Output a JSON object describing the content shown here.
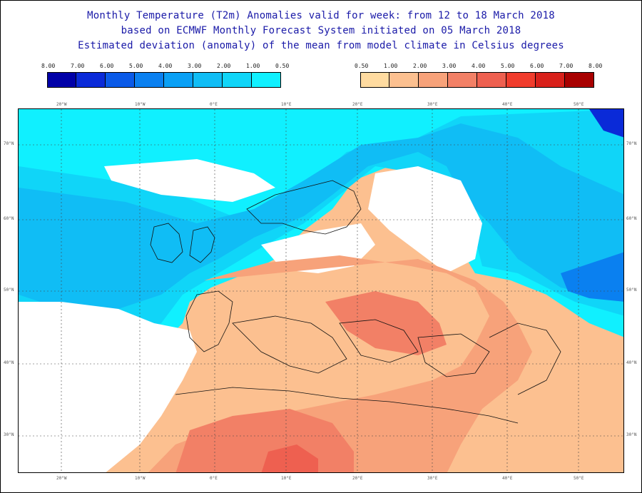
{
  "header": {
    "line1": "Monthly Temperature (T2m) Anomalies valid for week: from 12 to 18 March 2018",
    "line2": "based on ECMWF Monthly Forecast System initiated on 05 March 2018",
    "line3": "Estimated deviation (anomaly) of the mean from model climate in Celsius degrees"
  },
  "legend_cold": {
    "labels": [
      "8.00",
      "7.00",
      "6.00",
      "5.00",
      "4.00",
      "3.00",
      "2.00",
      "1.00",
      "0.50"
    ],
    "colors": [
      "#0000a8",
      "#0a2ad8",
      "#0a5ae8",
      "#0a80f0",
      "#0aa0f5",
      "#10bdf5",
      "#10d5f8",
      "#10f0ff"
    ]
  },
  "legend_warm": {
    "labels": [
      "0.50",
      "1.00",
      "2.00",
      "3.00",
      "4.00",
      "5.00",
      "6.00",
      "7.00",
      "8.00"
    ],
    "colors": [
      "#ffdba0",
      "#fcc090",
      "#f7a27a",
      "#f28066",
      "#ee6050",
      "#f03c2c",
      "#d8201a",
      "#a80000"
    ]
  },
  "map": {
    "lon_labels_top": [
      "20°W",
      "10°W",
      "0°E",
      "10°E",
      "20°E",
      "30°E",
      "40°E",
      "50°E"
    ],
    "lon_labels_bottom": [
      "20°W",
      "10°W",
      "0°E",
      "10°E",
      "20°E",
      "30°E",
      "40°E",
      "50°E"
    ],
    "lat_labels_left": [
      "70°N",
      "60°N",
      "50°N",
      "40°N",
      "30°N"
    ],
    "lat_labels_right": [
      "70°N",
      "60°N",
      "50°N",
      "40°N",
      "30°N"
    ]
  }
}
